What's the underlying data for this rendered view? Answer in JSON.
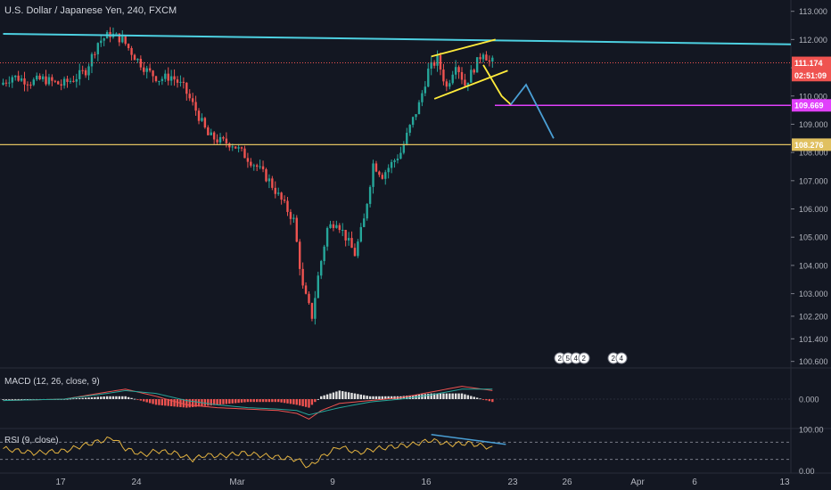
{
  "header": {
    "title": "U.S. Dollar / Japanese Yen, 240, FXCM"
  },
  "colors": {
    "background": "#131722",
    "up": "#26a69a",
    "down": "#ef5350",
    "trendline": "#4dd0e1",
    "wedge": "#ffeb3b",
    "support": "#e0c060",
    "magenta": "#e040fb",
    "projection": "#4a9fd5",
    "rsi": "#e3b341",
    "macd_line": "#ef5350",
    "signal_line": "#26a69a"
  },
  "price_axis": {
    "ticks": [
      "113.000",
      "112.000",
      "111.000",
      "110.000",
      "109.000",
      "108.000",
      "107.000",
      "106.000",
      "105.000",
      "104.000",
      "103.000",
      "102.200",
      "101.400",
      "100.600"
    ]
  },
  "price_tags": [
    {
      "label": "111.174",
      "value": 111.174,
      "color": "#ef5350"
    },
    {
      "label": "02:51:09",
      "value": 110.74,
      "color": "#ef5350"
    },
    {
      "label": "109.669",
      "value": 109.669,
      "color": "#e040fb"
    },
    {
      "label": "108.276",
      "value": 108.276,
      "color": "#e0c060"
    }
  ],
  "time_axis": [
    "17",
    "24",
    "Mar",
    "9",
    "16",
    "23",
    "26",
    "Apr",
    "6",
    "13"
  ],
  "macd": {
    "label": "MACD (12, 26, close, 9)",
    "ticks": [
      "0.000"
    ]
  },
  "rsi": {
    "label": "RSI (9, close)",
    "ticks": [
      "100.00",
      "0.00"
    ]
  },
  "events": {
    "group1": [
      "2",
      "5",
      "4",
      "2"
    ],
    "group2": [
      "2",
      "4"
    ]
  },
  "chart_data": [
    {
      "type": "candlestick",
      "title": "U.S. Dollar / Japanese Yen, 240, FXCM",
      "ylim": [
        100.4,
        113.4
      ],
      "x_labels": [
        "17",
        "24",
        "Mar",
        "9",
        "16",
        "23",
        "26",
        "Apr",
        "6",
        "13"
      ],
      "anchors": [
        [
          0,
          110.4
        ],
        [
          4,
          110.7
        ],
        [
          10,
          110.5
        ],
        [
          14,
          110.6
        ],
        [
          20,
          110.4
        ],
        [
          24,
          110.6
        ],
        [
          28,
          110.9
        ],
        [
          32,
          111.9
        ],
        [
          36,
          112.2
        ],
        [
          40,
          112.0
        ],
        [
          44,
          111.4
        ],
        [
          48,
          110.9
        ],
        [
          52,
          110.6
        ],
        [
          56,
          110.7
        ],
        [
          60,
          110.3
        ],
        [
          64,
          109.5
        ],
        [
          68,
          108.6
        ],
        [
          72,
          108.4
        ],
        [
          76,
          108.3
        ],
        [
          80,
          107.9
        ],
        [
          84,
          107.5
        ],
        [
          88,
          107.0
        ],
        [
          92,
          106.3
        ],
        [
          96,
          105.6
        ],
        [
          99,
          103.2
        ],
        [
          102,
          102.2
        ],
        [
          104,
          103.6
        ],
        [
          107,
          105.3
        ],
        [
          110,
          105.6
        ],
        [
          113,
          105.0
        ],
        [
          116,
          104.4
        ],
        [
          119,
          105.6
        ],
        [
          122,
          107.6
        ],
        [
          125,
          107.2
        ],
        [
          128,
          107.6
        ],
        [
          131,
          108.0
        ],
        [
          134,
          108.9
        ],
        [
          137,
          109.7
        ],
        [
          140,
          110.9
        ],
        [
          143,
          111.3
        ],
        [
          146,
          110.3
        ],
        [
          149,
          111.2
        ],
        [
          152,
          110.4
        ],
        [
          155,
          111.0
        ],
        [
          158,
          111.6
        ],
        [
          160,
          111.2
        ]
      ],
      "resistance_line": [
        [
          0,
          112.2
        ],
        [
          200,
          111.8
        ]
      ],
      "horizontal_levels": [
        111.174,
        109.669,
        108.276
      ],
      "wedge_upper": [
        [
          140,
          111.4
        ],
        [
          161,
          112.0
        ]
      ],
      "wedge_lower": [
        [
          141,
          109.9
        ],
        [
          165,
          110.9
        ]
      ],
      "projection_yellow": [
        [
          157,
          111.1
        ],
        [
          163,
          110.0
        ],
        [
          166,
          109.7
        ]
      ],
      "projection_blue": [
        [
          166,
          109.7
        ],
        [
          171,
          110.4
        ],
        [
          180,
          108.5
        ]
      ]
    },
    {
      "type": "line",
      "title": "MACD (12, 26, close, 9)",
      "ylim": [
        -1.0,
        1.0
      ],
      "series": [
        {
          "values": [
            [
              0,
              -0.05
            ],
            [
              20,
              0.0
            ],
            [
              34,
              0.25
            ],
            [
              40,
              0.35
            ],
            [
              50,
              0.1
            ],
            [
              60,
              -0.2
            ],
            [
              70,
              -0.3
            ],
            [
              80,
              -0.35
            ],
            [
              90,
              -0.4
            ],
            [
              96,
              -0.5
            ],
            [
              100,
              -0.7
            ],
            [
              104,
              -0.4
            ],
            [
              110,
              -0.15
            ],
            [
              120,
              -0.05
            ],
            [
              130,
              0.05
            ],
            [
              140,
              0.25
            ],
            [
              150,
              0.45
            ],
            [
              160,
              0.3
            ]
          ]
        },
        {
          "values": [
            [
              0,
              -0.05
            ],
            [
              20,
              0.0
            ],
            [
              34,
              0.2
            ],
            [
              40,
              0.3
            ],
            [
              50,
              0.2
            ],
            [
              60,
              -0.05
            ],
            [
              70,
              -0.2
            ],
            [
              80,
              -0.3
            ],
            [
              90,
              -0.35
            ],
            [
              96,
              -0.4
            ],
            [
              100,
              -0.55
            ],
            [
              104,
              -0.45
            ],
            [
              110,
              -0.3
            ],
            [
              120,
              -0.1
            ],
            [
              130,
              0.0
            ],
            [
              140,
              0.15
            ],
            [
              150,
              0.35
            ],
            [
              160,
              0.35
            ]
          ]
        }
      ],
      "histogram_color_up": "#e0e0e0",
      "histogram_color_down": "#ef5350"
    },
    {
      "type": "line",
      "title": "RSI (9, close)",
      "ylim": [
        0,
        100
      ],
      "levels": [
        70,
        30
      ],
      "values": [
        [
          0,
          55
        ],
        [
          10,
          45
        ],
        [
          20,
          50
        ],
        [
          30,
          70
        ],
        [
          36,
          80
        ],
        [
          40,
          55
        ],
        [
          46,
          40
        ],
        [
          50,
          50
        ],
        [
          56,
          45
        ],
        [
          62,
          30
        ],
        [
          66,
          40
        ],
        [
          72,
          38
        ],
        [
          78,
          45
        ],
        [
          84,
          40
        ],
        [
          90,
          35
        ],
        [
          96,
          30
        ],
        [
          100,
          12
        ],
        [
          104,
          35
        ],
        [
          110,
          60
        ],
        [
          116,
          45
        ],
        [
          122,
          55
        ],
        [
          128,
          60
        ],
        [
          134,
          65
        ],
        [
          140,
          75
        ],
        [
          146,
          65
        ],
        [
          152,
          68
        ],
        [
          158,
          60
        ],
        [
          160,
          55
        ]
      ],
      "divergence_line": [
        [
          140,
          88
        ],
        [
          160,
          65
        ]
      ]
    }
  ]
}
